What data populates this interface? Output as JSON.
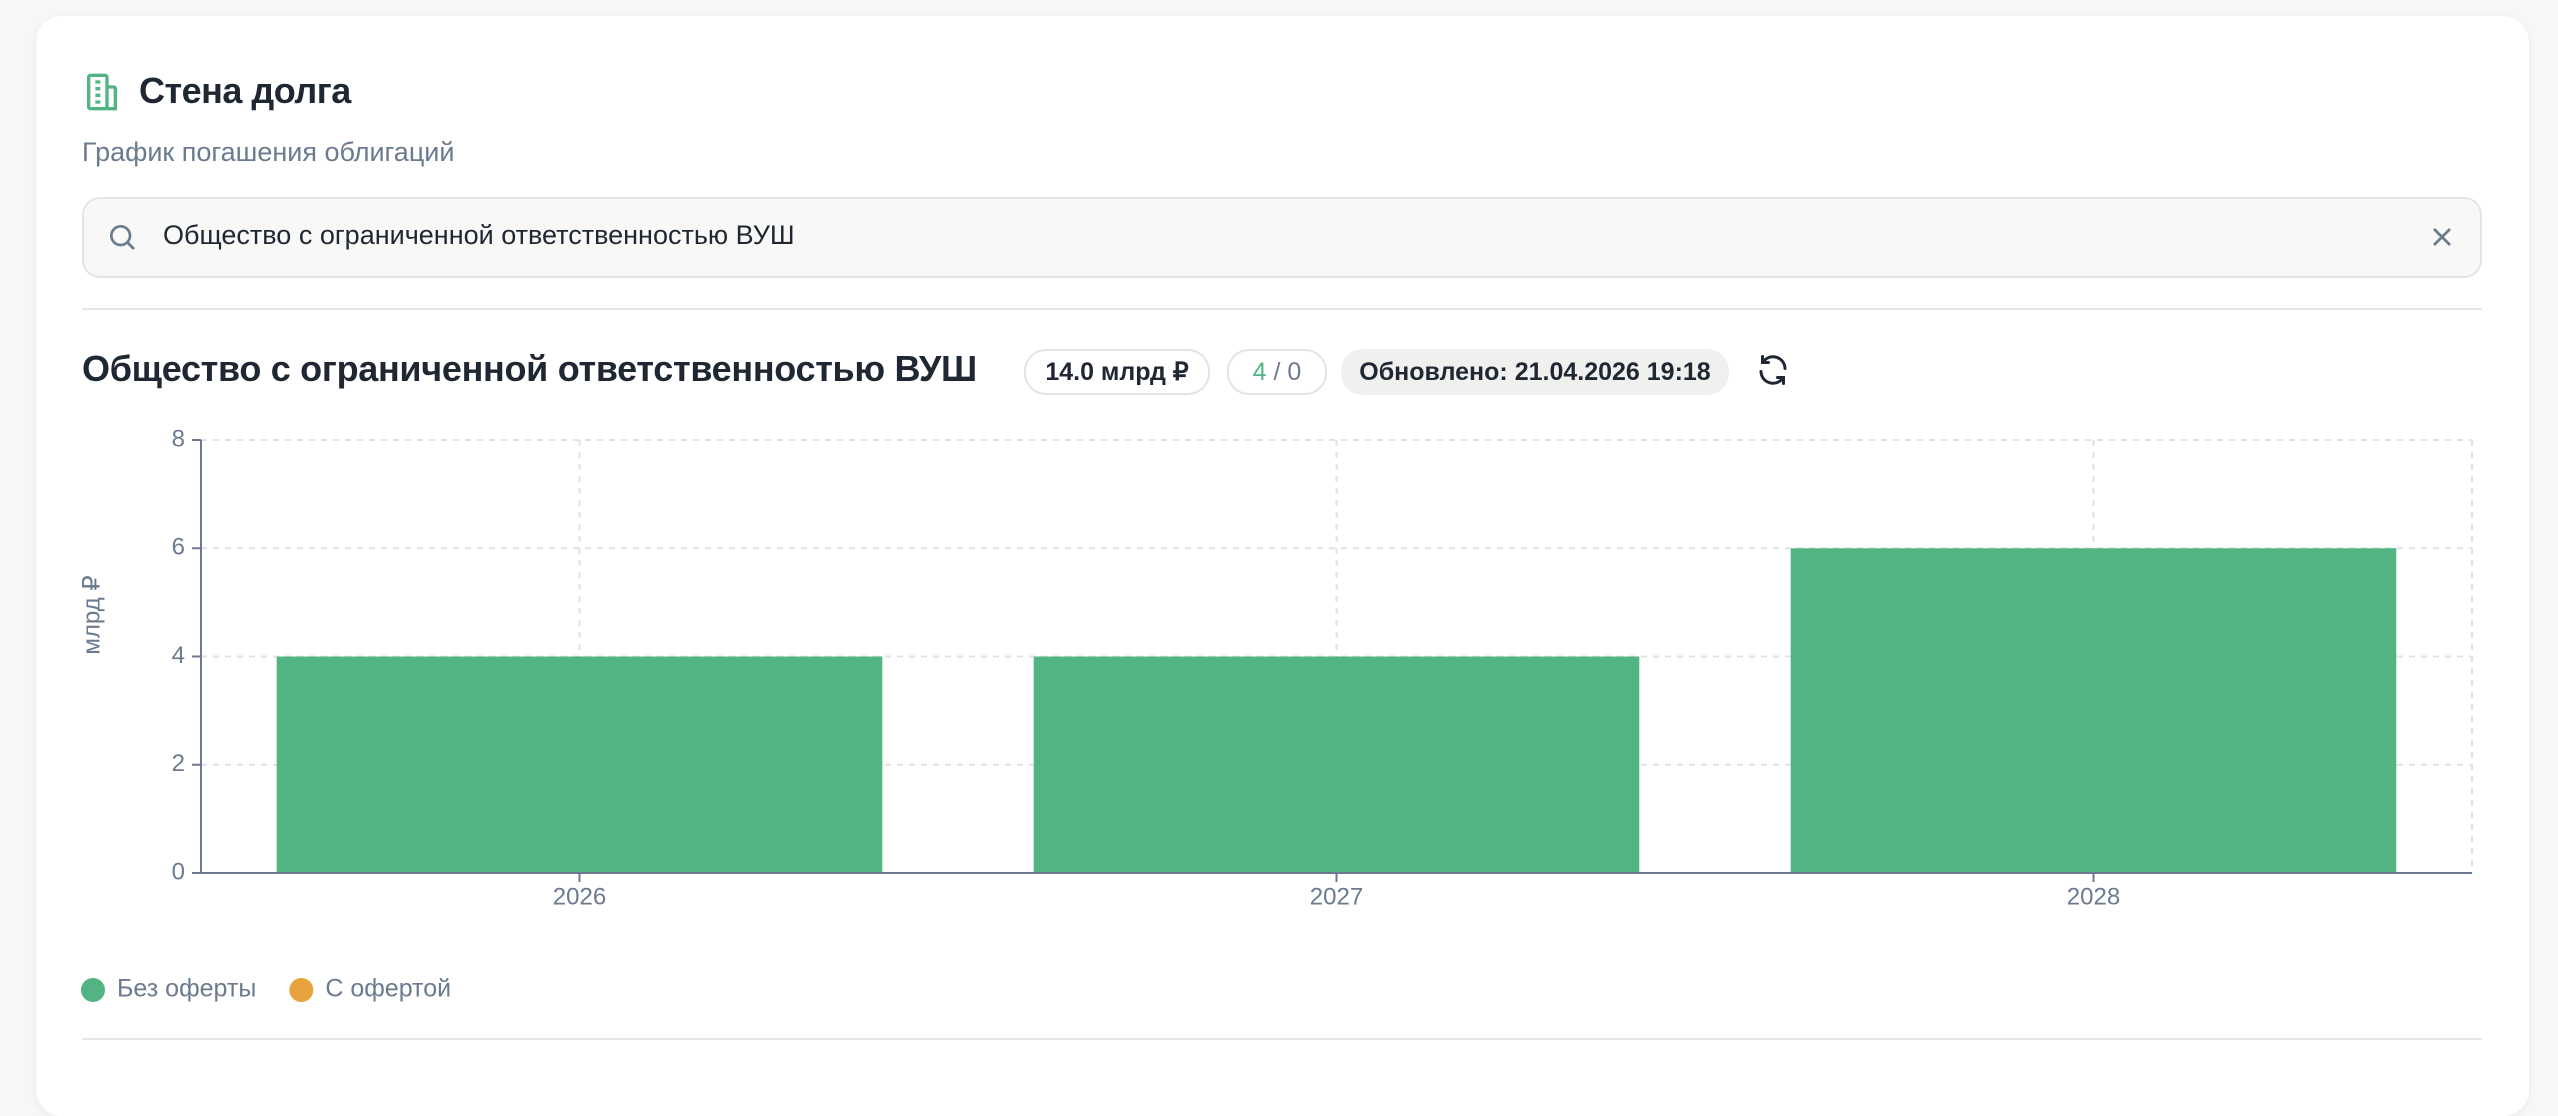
{
  "header": {
    "title": "Стена долга",
    "subtitle": "График погашения облигаций"
  },
  "search": {
    "value": "Общество с ограниченной ответственностью ВУШ"
  },
  "company": {
    "name": "Общество с ограниченной ответственностью ВУШ",
    "total_badge": "14.0 млрд ₽",
    "counts": {
      "left": "4",
      "sep": "/",
      "right": "0"
    },
    "updated": "Обновлено: 21.04.2026 19:18"
  },
  "chart_data": {
    "type": "bar",
    "stacked": true,
    "y_label": "млрд ₽",
    "categories": [
      "2026",
      "2027",
      "2028"
    ],
    "series": [
      {
        "name": "Без оферты",
        "color": "#52b483",
        "values": [
          4,
          4,
          6
        ]
      },
      {
        "name": "С офертой",
        "color": "#e8a33d",
        "values": [
          0,
          0,
          0
        ]
      }
    ],
    "ylim": [
      0,
      8
    ],
    "yticks": [
      0,
      2,
      4,
      6,
      8
    ],
    "grid": true,
    "legend": "bottom-left"
  }
}
